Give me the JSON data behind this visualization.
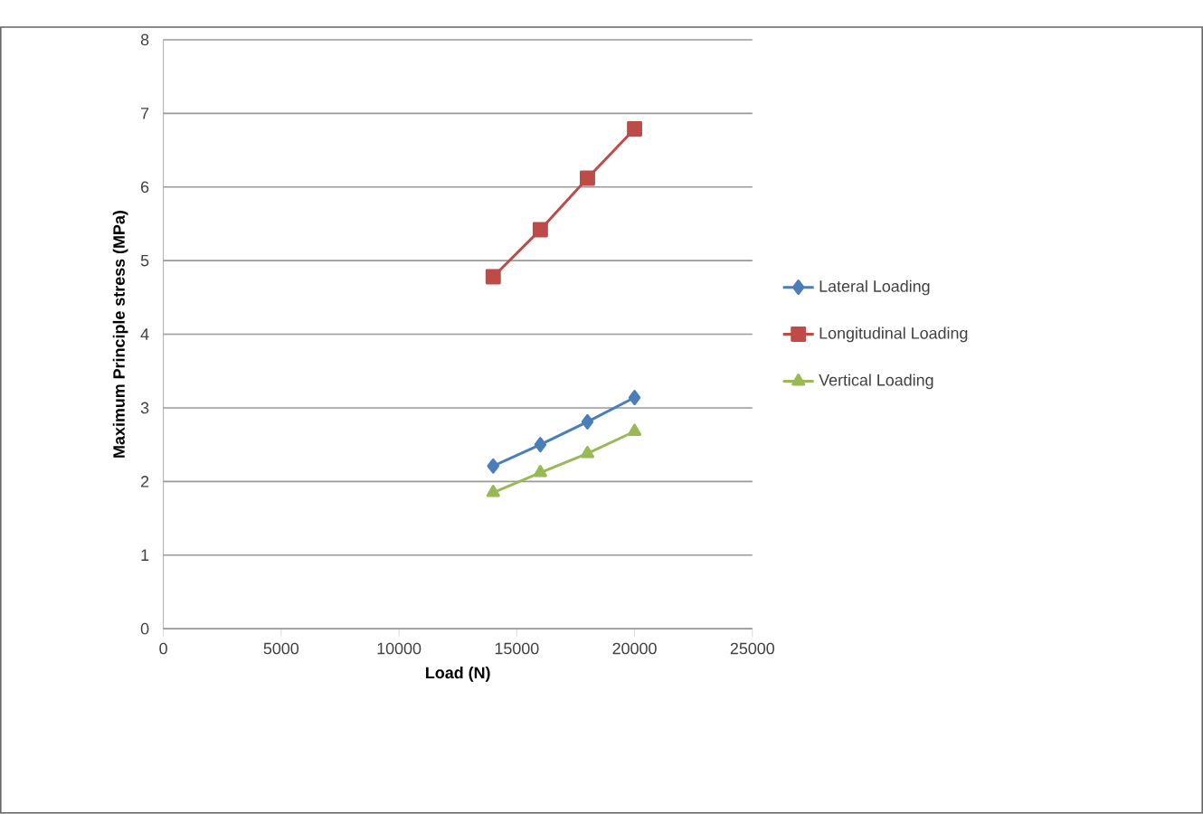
{
  "chart_data": {
    "type": "line",
    "xlabel": "Load (N)",
    "ylabel": "Maximum Principle stress (MPa)",
    "x": [
      14000,
      16000,
      18000,
      20000
    ],
    "series": [
      {
        "name": "Lateral Loading",
        "color": "#4a7ebb",
        "values": [
          2.21,
          2.5,
          2.81,
          3.14
        ],
        "marker": "diamond"
      },
      {
        "name": "Longitudinal Loading",
        "color": "#be4b48",
        "values": [
          4.78,
          5.42,
          6.12,
          6.79
        ],
        "marker": "square"
      },
      {
        "name": "Vertical Loading",
        "color": "#98b954",
        "values": [
          1.85,
          2.12,
          2.38,
          2.68
        ],
        "marker": "triangle"
      }
    ],
    "xlim": [
      0,
      25000
    ],
    "xticks": [
      0,
      5000,
      10000,
      15000,
      20000,
      25000
    ],
    "ylim": [
      0,
      8
    ],
    "yticks": [
      0,
      1,
      2,
      3,
      4,
      5,
      6,
      7,
      8
    ],
    "grid": "y",
    "legend": "right",
    "line_style": "solid"
  }
}
